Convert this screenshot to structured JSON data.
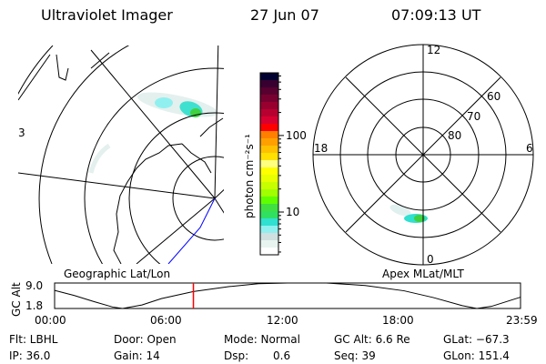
{
  "header": {
    "instrument": "Ultraviolet Imager",
    "date": "27 Jun 07",
    "time": "07:09:13 UT"
  },
  "left_panel": {
    "label": "Geographic Lat/Lon",
    "edge_label": "3"
  },
  "right_panel": {
    "label": "Apex MLat/MLT",
    "mlt_labels": [
      "12",
      "6",
      "0",
      "18"
    ],
    "mlat_labels": [
      "60",
      "70",
      "80"
    ]
  },
  "colorbar": {
    "unit_label": "photon cm⁻²s⁻¹",
    "ticks": [
      {
        "value": 10,
        "label": "10"
      },
      {
        "value": 100,
        "label": "100"
      }
    ],
    "range": [
      2.76,
      660
    ],
    "colors": [
      "#000030",
      "#380030",
      "#580030",
      "#780030",
      "#980030",
      "#b80030",
      "#d80030",
      "#ff0000",
      "#ff8000",
      "#ffa000",
      "#ffc000",
      "#ffe000",
      "#ffff80",
      "#ffff00",
      "#e8ff00",
      "#c8ff00",
      "#a0ff00",
      "#60ff00",
      "#40e040",
      "#30e060",
      "#30e0d0",
      "#90f0f0",
      "#d0e0e0",
      "#e8f4f0",
      "#ffffff"
    ]
  },
  "chart_data": {
    "type": "line",
    "ylabel": "GC Alt",
    "yticks": [
      "9.0",
      "1.8"
    ],
    "ylim": [
      1.8,
      9.0
    ],
    "xticks": [
      "00:00",
      "06:00",
      "12:00",
      "18:00",
      "23:59"
    ],
    "xlim_hours": [
      0,
      24
    ],
    "current_time_hours": 7.15,
    "marker_color": "#ff0000",
    "points": [
      [
        0,
        6.9
      ],
      [
        1,
        5.5
      ],
      [
        2,
        3.8
      ],
      [
        3,
        2.2
      ],
      [
        3.5,
        1.8
      ],
      [
        4.5,
        2.8
      ],
      [
        5.5,
        4.6
      ],
      [
        7.15,
        6.6
      ],
      [
        9,
        8.0
      ],
      [
        10.5,
        8.8
      ],
      [
        12,
        9.0
      ],
      [
        14,
        9.0
      ],
      [
        16,
        8.3
      ],
      [
        18,
        6.8
      ],
      [
        19.5,
        4.9
      ],
      [
        21,
        2.6
      ],
      [
        21.75,
        1.8
      ],
      [
        22.5,
        2.4
      ],
      [
        24,
        5.0
      ]
    ]
  },
  "status": {
    "filter": "Flt: LBHL",
    "door": "Door: Open",
    "mode": "Mode: Normal",
    "gc_alt": "GC Alt: 6.6 Re",
    "glat": "GLat: −67.3",
    "ip": "IP: 36.0",
    "gain": "Gain: 14",
    "dsp_label": "Dsp:",
    "dsp_value": "0.6",
    "seq": "Seq: 39",
    "glon": "GLon: 151.4"
  }
}
